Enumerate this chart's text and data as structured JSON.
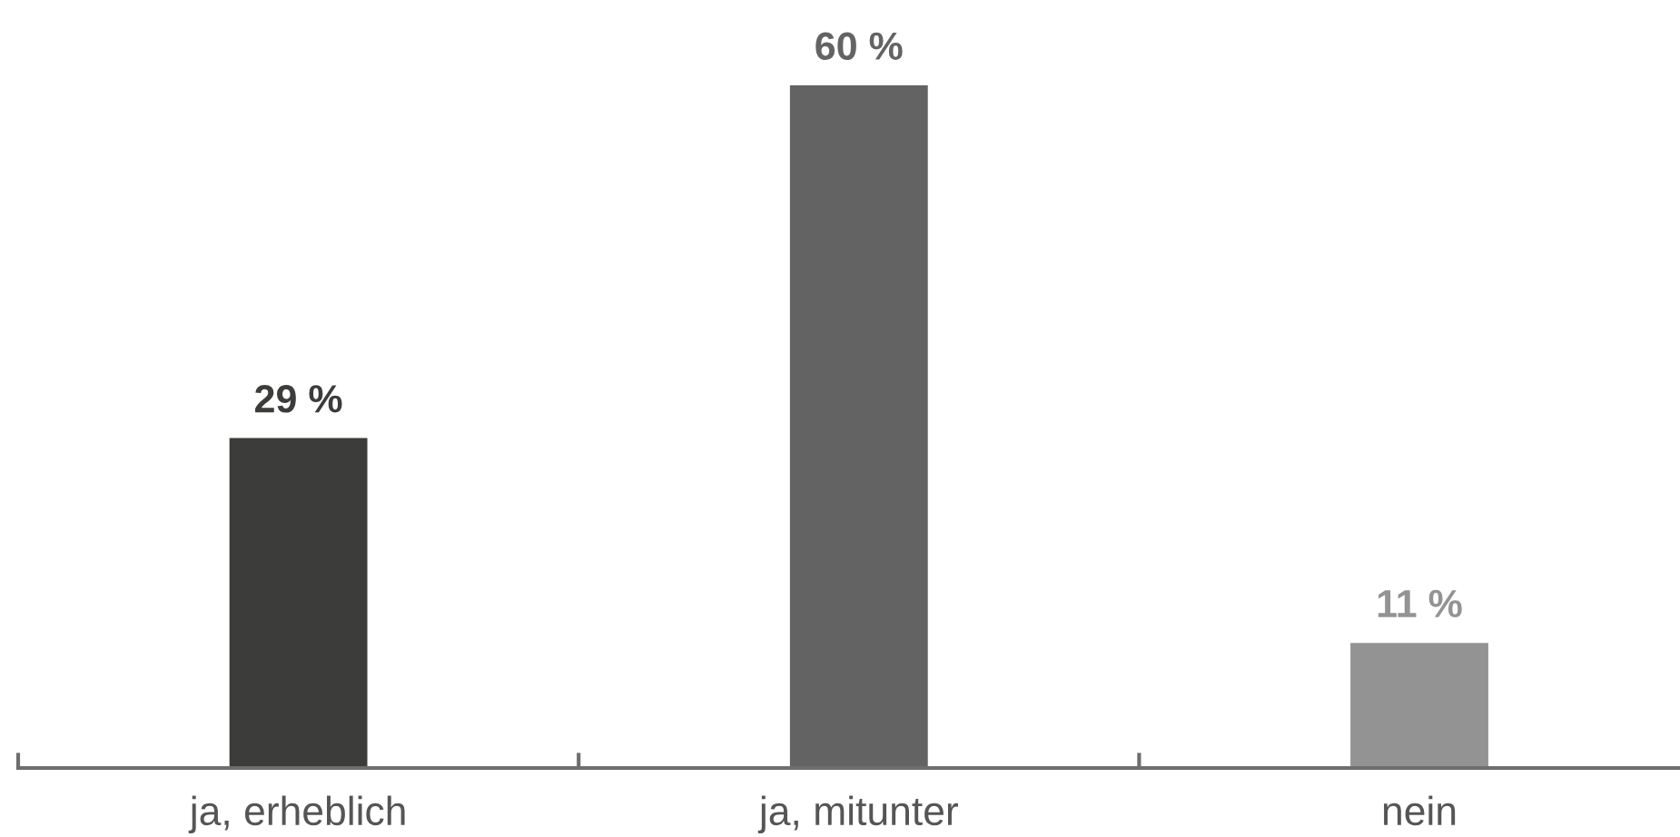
{
  "chart_data": {
    "type": "bar",
    "categories": [
      "ja, erheblich",
      "ja, mitunter",
      "nein"
    ],
    "values": [
      29,
      60,
      11
    ],
    "colors": [
      "#3c3c3b",
      "#636363",
      "#939393"
    ],
    "value_labels": [
      "29 %",
      "60 %",
      "11 %"
    ],
    "tick_labels": "x"
  }
}
